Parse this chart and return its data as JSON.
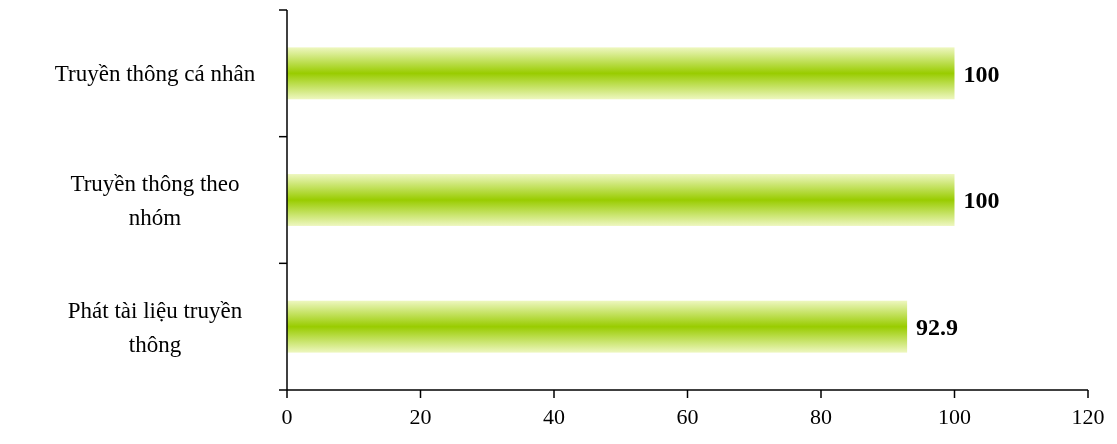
{
  "chart_data": {
    "type": "bar",
    "orientation": "horizontal",
    "categories": [
      "Truyền thông cá nhân",
      "Truyền thông theo nhóm",
      "Phát tài liệu truyền thông"
    ],
    "values": [
      100,
      100,
      92.9
    ],
    "color": "#99cc00",
    "xlim": [
      0,
      120
    ],
    "xticks": [
      0,
      20,
      40,
      60,
      80,
      100,
      120
    ],
    "data_labels": true
  }
}
